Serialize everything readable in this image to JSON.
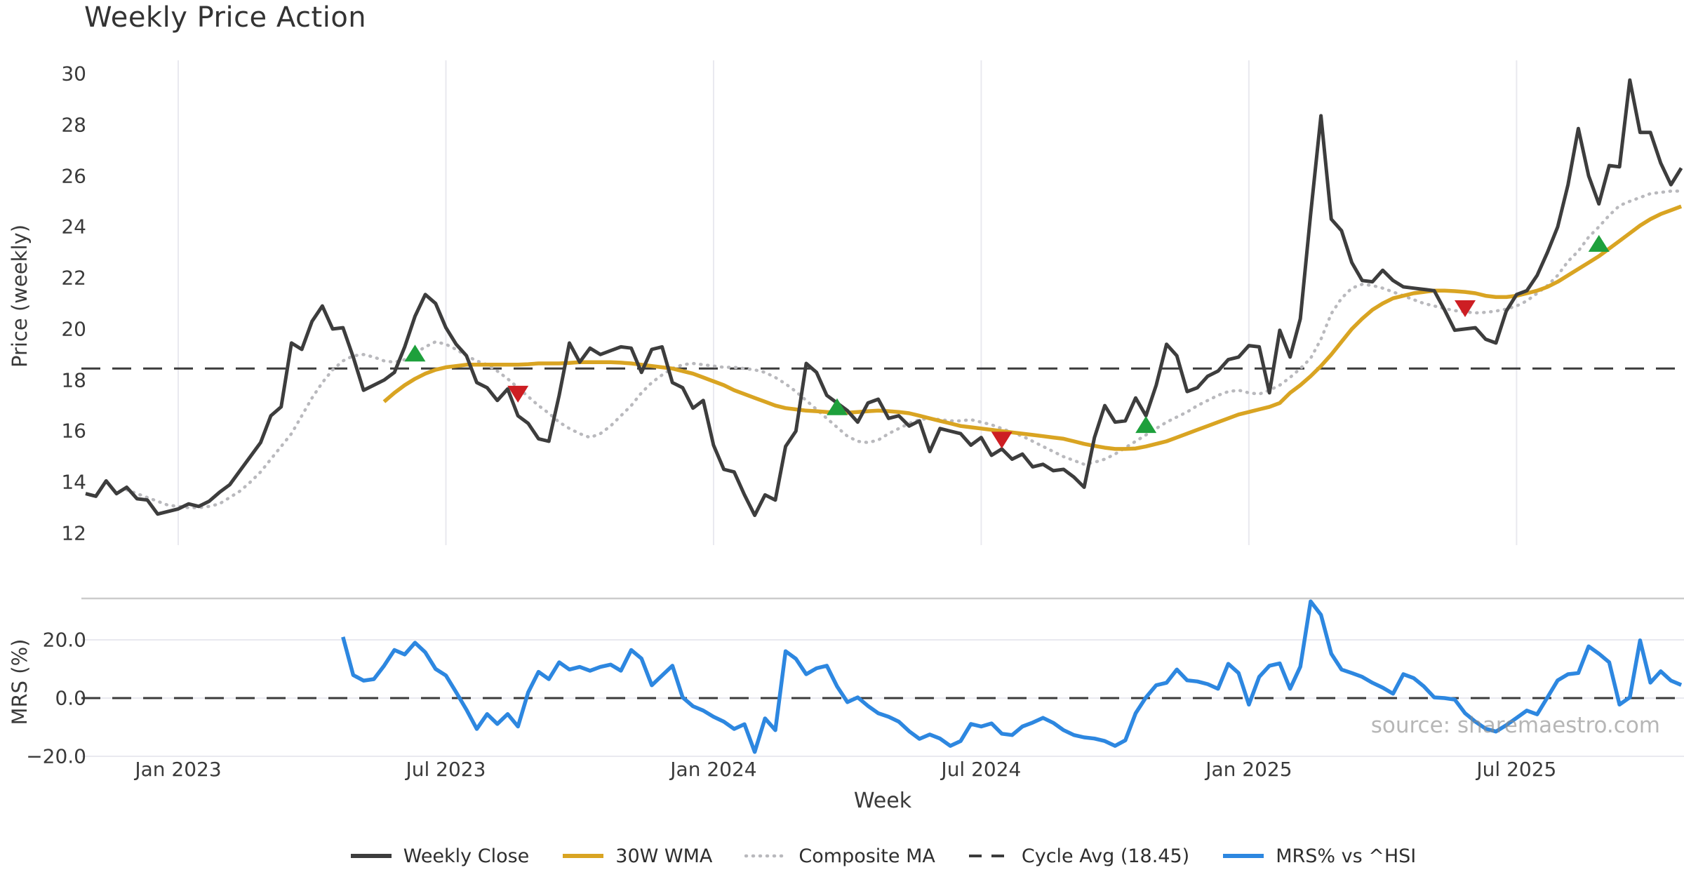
{
  "title": "Weekly Price Action",
  "watermark": "source: sharemaestro.com",
  "axes": {
    "x_label": "Week",
    "price_label": "Price (weekly)",
    "mrs_label": "MRS (%)",
    "x_ticks": [
      {
        "label": "Jan 2023",
        "week": 0
      },
      {
        "label": "Jul 2023",
        "week": 26
      },
      {
        "label": "Jan 2024",
        "week": 52
      },
      {
        "label": "Jul 2024",
        "week": 78
      },
      {
        "label": "Jan 2025",
        "week": 104
      },
      {
        "label": "Jul 2025",
        "week": 130
      }
    ],
    "price_ticks": [
      12,
      14,
      16,
      18,
      20,
      22,
      24,
      26,
      28,
      30
    ],
    "mrs_ticks": [
      {
        "label": "20.0",
        "value": 20
      },
      {
        "label": "0.0",
        "value": 0
      },
      {
        "label": "−20.0",
        "value": -20
      }
    ]
  },
  "colors": {
    "close": "#3d3d3d",
    "wma": "#d9a422",
    "composite": "#b9b9bd",
    "cycle_avg": "#3b3b3b",
    "mrs": "#2d87e0",
    "buy_marker": "#1ea03c",
    "sell_marker": "#cd1e23",
    "grid": "#e9e9ef",
    "separator": "#cccccc"
  },
  "legend": [
    {
      "name": "weekly-close",
      "label": "Weekly Close",
      "color": "#3d3d3d",
      "style": "solid"
    },
    {
      "name": "wma",
      "label": "30W WMA",
      "color": "#d9a422",
      "style": "solid"
    },
    {
      "name": "composite-ma",
      "label": "Composite MA",
      "color": "#b9b9bd",
      "style": "dotted"
    },
    {
      "name": "cycle-avg",
      "label": "Cycle Avg (18.45)",
      "color": "#3b3b3b",
      "style": "dashed"
    },
    {
      "name": "mrs",
      "label": "MRS% vs ^HSI",
      "color": "#2d87e0",
      "style": "solid"
    }
  ],
  "chart_data": [
    {
      "panel": "price",
      "type": "line",
      "title": "Weekly Price Action",
      "ylabel": "Price (weekly)",
      "ylim": [
        11.6,
        30.5
      ],
      "x_unit": "weeks relative to Jan 2023 tick (1 step = 1 week)",
      "cycle_avg": 18.45,
      "series": [
        {
          "name": "Weekly Close",
          "start_week": -9,
          "values": [
            13.55,
            13.45,
            14.05,
            13.55,
            13.8,
            13.35,
            13.3,
            12.75,
            12.85,
            12.95,
            13.15,
            13.05,
            13.25,
            13.6,
            13.9,
            14.45,
            15.0,
            15.55,
            16.6,
            16.95,
            19.45,
            19.2,
            20.3,
            20.9,
            20.0,
            20.05,
            18.9,
            17.6,
            17.8,
            18.0,
            18.3,
            19.3,
            20.5,
            21.35,
            21.0,
            20.05,
            19.4,
            18.95,
            17.9,
            17.7,
            17.2,
            17.65,
            16.6,
            16.3,
            15.7,
            15.6,
            17.4,
            19.45,
            18.7,
            19.25,
            19.0,
            19.15,
            19.3,
            19.25,
            18.3,
            19.2,
            19.3,
            17.9,
            17.7,
            16.9,
            17.2,
            15.45,
            14.5,
            14.4,
            13.5,
            12.7,
            13.5,
            13.3,
            15.4,
            16.0,
            18.65,
            18.3,
            17.4,
            17.1,
            16.8,
            16.35,
            17.1,
            17.25,
            16.5,
            16.6,
            16.2,
            16.4,
            15.2,
            16.1,
            16.0,
            15.9,
            15.45,
            15.75,
            15.05,
            15.3,
            14.9,
            15.1,
            14.6,
            14.7,
            14.45,
            14.5,
            14.2,
            13.8,
            15.75,
            17.0,
            16.35,
            16.4,
            17.3,
            16.6,
            17.8,
            19.4,
            18.95,
            17.55,
            17.7,
            18.15,
            18.35,
            18.8,
            18.9,
            19.35,
            19.3,
            17.5,
            19.95,
            18.9,
            20.4,
            24.5,
            28.35,
            24.3,
            23.85,
            22.6,
            21.9,
            21.85,
            22.3,
            21.9,
            21.65,
            21.6,
            21.55,
            21.5,
            20.75,
            19.95,
            20.0,
            20.05,
            19.6,
            19.45,
            20.7,
            21.35,
            21.5,
            22.1,
            23.0,
            24.0,
            25.65,
            27.85,
            26.0,
            24.9,
            26.4,
            26.35,
            29.75,
            27.7,
            27.7,
            26.5,
            25.65,
            26.3
          ]
        },
        {
          "name": "30W WMA",
          "start_week": 20,
          "values": [
            17.15,
            17.5,
            17.8,
            18.05,
            18.25,
            18.4,
            18.5,
            18.55,
            18.6,
            18.6,
            18.6,
            18.6,
            18.6,
            18.6,
            18.62,
            18.65,
            18.65,
            18.65,
            18.67,
            18.7,
            18.7,
            18.7,
            18.7,
            18.68,
            18.65,
            18.6,
            18.55,
            18.5,
            18.45,
            18.35,
            18.25,
            18.1,
            17.95,
            17.8,
            17.6,
            17.45,
            17.3,
            17.15,
            17.0,
            16.9,
            16.85,
            16.8,
            16.78,
            16.75,
            16.73,
            16.72,
            16.75,
            16.78,
            16.8,
            16.78,
            16.75,
            16.7,
            16.6,
            16.5,
            16.4,
            16.3,
            16.2,
            16.15,
            16.1,
            16.05,
            16.0,
            15.95,
            15.9,
            15.85,
            15.8,
            15.75,
            15.7,
            15.6,
            15.5,
            15.42,
            15.35,
            15.3,
            15.3,
            15.32,
            15.4,
            15.5,
            15.6,
            15.75,
            15.9,
            16.05,
            16.2,
            16.35,
            16.5,
            16.65,
            16.75,
            16.85,
            16.95,
            17.1,
            17.5,
            17.8,
            18.15,
            18.55,
            19.0,
            19.5,
            20.0,
            20.4,
            20.75,
            21.0,
            21.2,
            21.3,
            21.4,
            21.45,
            21.5,
            21.5,
            21.48,
            21.45,
            21.4,
            21.3,
            21.25,
            21.25,
            21.3,
            21.4,
            21.5,
            21.65,
            21.85,
            22.1,
            22.35,
            22.6,
            22.85,
            23.15,
            23.45,
            23.75,
            24.05,
            24.3,
            24.5,
            24.65,
            24.8
          ]
        },
        {
          "name": "Composite MA",
          "start_week": -5,
          "values": [
            13.7,
            13.55,
            13.4,
            13.25,
            13.1,
            13.05,
            13.0,
            13.0,
            13.05,
            13.15,
            13.4,
            13.65,
            14.0,
            14.4,
            14.9,
            15.4,
            15.9,
            16.6,
            17.3,
            17.9,
            18.4,
            18.75,
            18.95,
            19.0,
            18.9,
            18.75,
            18.7,
            18.8,
            19.05,
            19.3,
            19.5,
            19.4,
            19.2,
            18.95,
            18.75,
            18.6,
            18.35,
            18.05,
            17.7,
            17.35,
            17.0,
            16.7,
            16.35,
            16.1,
            15.9,
            15.75,
            15.9,
            16.2,
            16.6,
            17.0,
            17.5,
            17.9,
            18.2,
            18.45,
            18.6,
            18.65,
            18.6,
            18.55,
            18.5,
            18.5,
            18.45,
            18.4,
            18.3,
            18.1,
            17.85,
            17.55,
            17.2,
            16.85,
            16.5,
            16.15,
            15.8,
            15.6,
            15.55,
            15.65,
            15.9,
            16.1,
            16.3,
            16.45,
            16.5,
            16.45,
            16.4,
            16.4,
            16.45,
            16.35,
            16.25,
            16.1,
            15.95,
            15.8,
            15.6,
            15.4,
            15.2,
            15.0,
            14.85,
            14.7,
            14.78,
            14.9,
            15.1,
            15.35,
            15.6,
            15.85,
            16.1,
            16.35,
            16.55,
            16.75,
            17.0,
            17.2,
            17.4,
            17.55,
            17.6,
            17.5,
            17.45,
            17.6,
            17.8,
            18.1,
            18.45,
            18.85,
            19.6,
            20.6,
            21.2,
            21.6,
            21.75,
            21.7,
            21.6,
            21.45,
            21.3,
            21.15,
            21.0,
            20.9,
            20.8,
            20.72,
            20.67,
            20.63,
            20.65,
            20.7,
            20.78,
            20.9,
            21.1,
            21.4,
            21.7,
            22.1,
            22.65,
            23.05,
            23.6,
            24.0,
            24.45,
            24.83,
            25.0,
            25.15,
            25.3,
            25.35,
            25.4,
            25.4
          ]
        }
      ],
      "markers": {
        "buy": [
          {
            "week": 23,
            "price": 19.0
          },
          {
            "week": 64,
            "price": 16.9
          },
          {
            "week": 94,
            "price": 16.2
          },
          {
            "week": 138,
            "price": 23.3
          }
        ],
        "sell": [
          {
            "week": 33,
            "price": 17.5
          },
          {
            "week": 80,
            "price": 15.7
          },
          {
            "week": 125,
            "price": 20.85
          }
        ]
      }
    },
    {
      "panel": "mrs",
      "type": "line",
      "ylabel": "MRS (%)",
      "ylim": [
        -21.5,
        34.2
      ],
      "zero_line": 0,
      "series": [
        {
          "name": "MRS% vs ^HSI",
          "start_week": 16,
          "values": [
            21.0,
            7.9,
            6.0,
            6.5,
            11.1,
            16.5,
            15.0,
            19.0,
            15.7,
            10.0,
            7.75,
            2.0,
            -4.0,
            -10.6,
            -5.5,
            -8.9,
            -5.5,
            -9.75,
            2.0,
            9.0,
            6.5,
            12.3,
            9.8,
            10.7,
            9.4,
            10.7,
            11.5,
            9.4,
            16.5,
            13.6,
            4.4,
            7.75,
            11.1,
            0.25,
            -2.8,
            -4.3,
            -6.4,
            -8.1,
            -10.6,
            -9.0,
            -18.5,
            -7.0,
            -11.0,
            16.1,
            13.5,
            8.2,
            10.25,
            11.1,
            4.0,
            -1.4,
            0.25,
            -2.7,
            -5.2,
            -6.4,
            -8.1,
            -11.4,
            -14.0,
            -12.5,
            -13.9,
            -16.4,
            -14.75,
            -8.9,
            -9.75,
            -8.7,
            -12.25,
            -12.7,
            -9.75,
            -8.4,
            -6.8,
            -8.5,
            -11.0,
            -12.7,
            -13.5,
            -13.9,
            -14.75,
            -16.4,
            -14.5,
            -5.2,
            0.25,
            4.4,
            5.25,
            9.8,
            6.1,
            5.7,
            4.8,
            3.2,
            11.75,
            8.6,
            -2.25,
            7.3,
            11.1,
            11.9,
            3.2,
            10.8,
            33.2,
            28.6,
            15.25,
            9.8,
            8.6,
            7.3,
            5.25,
            3.6,
            1.5,
            8.2,
            6.9,
            4.0,
            0.25,
            0.0,
            -0.5,
            -5.2,
            -8.1,
            -10.5,
            -11.5,
            -9.3,
            -6.8,
            -4.3,
            -5.6,
            0.25,
            6.1,
            8.2,
            8.6,
            17.75,
            15.25,
            12.3,
            -2.25,
            0.25,
            19.8,
            5.3,
            9.2,
            6.0,
            4.5
          ]
        }
      ]
    }
  ]
}
